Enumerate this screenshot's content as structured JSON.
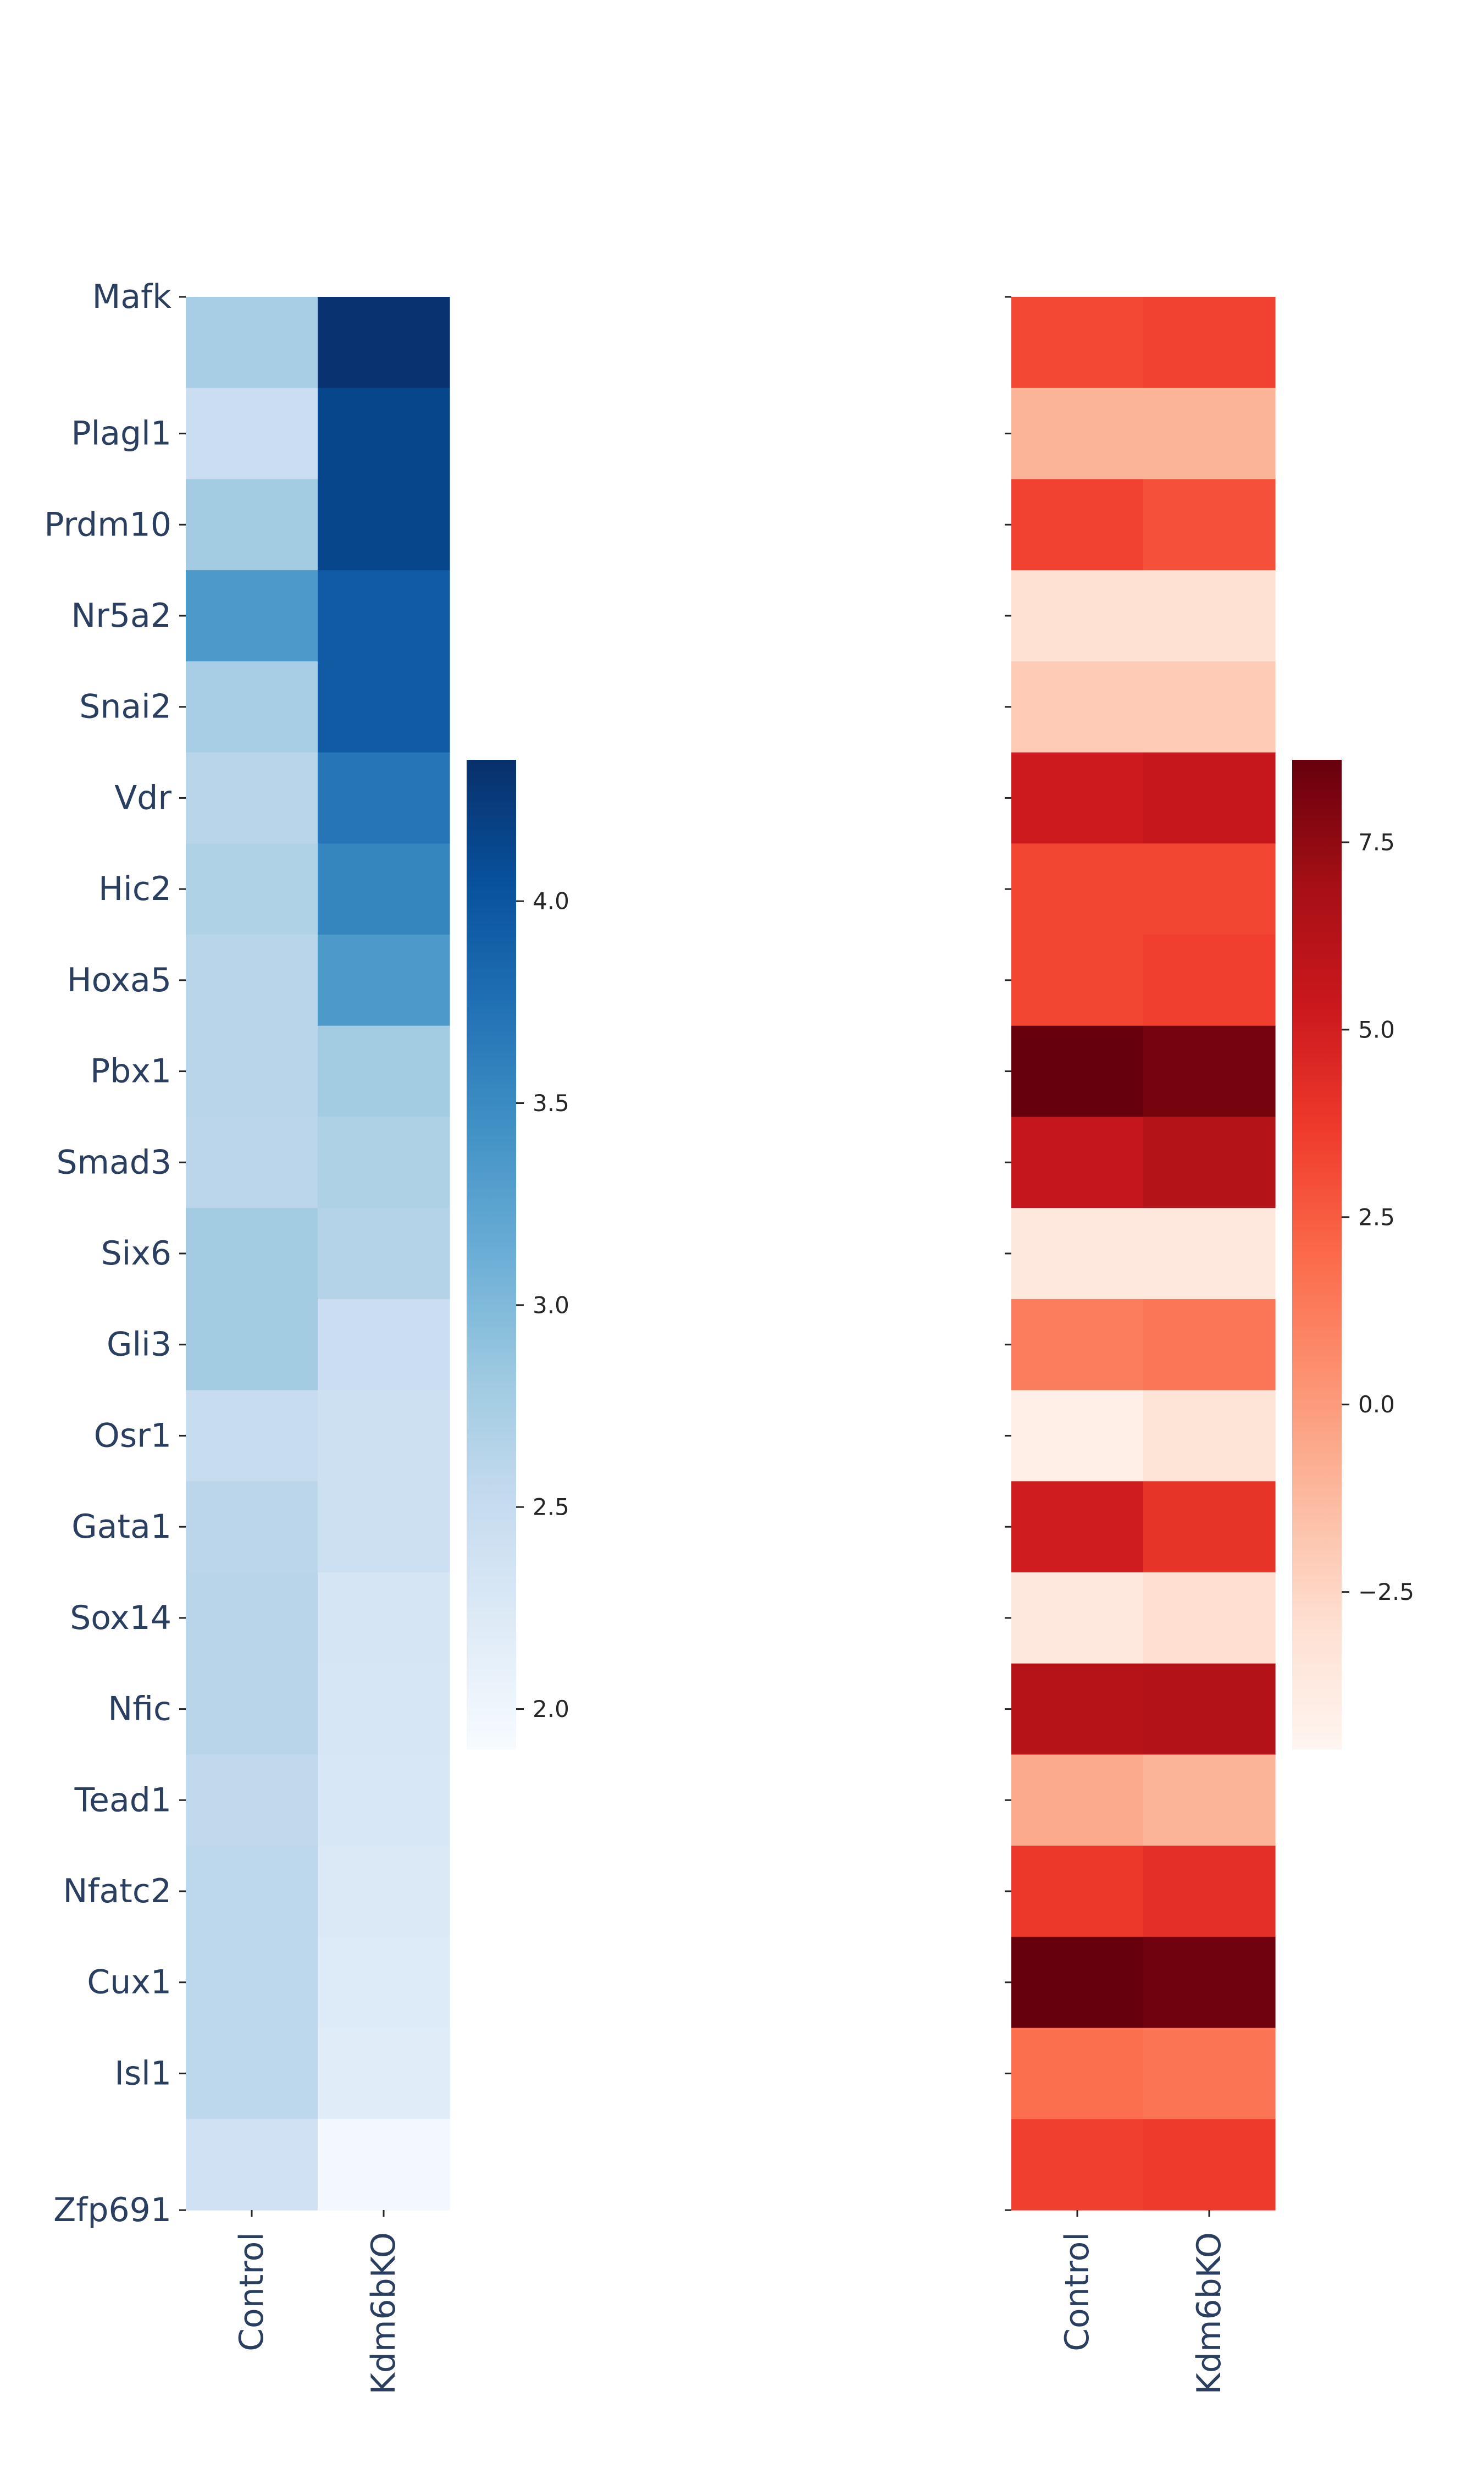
{
  "chart_data": [
    {
      "type": "heatmap",
      "colormap": "Blues",
      "rows": [
        "Mafk",
        "Plagl1",
        "Prdm10",
        "Nr5a2",
        "Snai2",
        "Vdr",
        "Hic2",
        "Hoxa5",
        "Pbx1",
        "Smad3",
        "Six6",
        "Gli3",
        "Osr1",
        "Gata1",
        "Sox14",
        "Nfic",
        "Tead1",
        "Nfatc2",
        "Cux1",
        "Isl1",
        "Zfp691"
      ],
      "columns": [
        "Control",
        "Kdm6bKO"
      ],
      "values": [
        [
          2.75,
          4.32
        ],
        [
          2.45,
          4.15
        ],
        [
          2.78,
          4.15
        ],
        [
          3.35,
          3.95
        ],
        [
          2.75,
          3.95
        ],
        [
          2.62,
          3.7
        ],
        [
          2.68,
          3.55
        ],
        [
          2.62,
          3.35
        ],
        [
          2.62,
          2.78
        ],
        [
          2.6,
          2.7
        ],
        [
          2.78,
          2.65
        ],
        [
          2.78,
          2.45
        ],
        [
          2.5,
          2.42
        ],
        [
          2.6,
          2.42
        ],
        [
          2.62,
          2.32
        ],
        [
          2.62,
          2.3
        ],
        [
          2.55,
          2.28
        ],
        [
          2.58,
          2.25
        ],
        [
          2.58,
          2.22
        ],
        [
          2.58,
          2.18
        ],
        [
          2.4,
          1.95
        ]
      ],
      "colorbar": {
        "vmin": 1.9,
        "vmax": 4.35,
        "ticks": [
          2.0,
          2.5,
          3.0,
          3.5,
          4.0
        ],
        "tick_labels": [
          "2.0",
          "2.5",
          "3.0",
          "3.5",
          "4.0"
        ]
      }
    },
    {
      "type": "heatmap",
      "colormap": "Reds",
      "rows_labeled": false,
      "row_count": 21,
      "columns": [
        "Control",
        "Kdm6bKO"
      ],
      "values": [
        [
          3.2,
          3.4
        ],
        [
          -1.0,
          -1.0
        ],
        [
          3.4,
          2.9
        ],
        [
          -3.0,
          -3.0
        ],
        [
          -2.0,
          -2.0
        ],
        [
          5.2,
          5.5
        ],
        [
          3.3,
          3.3
        ],
        [
          3.3,
          3.5
        ],
        [
          8.6,
          8.2
        ],
        [
          5.6,
          6.3
        ],
        [
          -3.6,
          -3.6
        ],
        [
          1.2,
          1.5
        ],
        [
          -4.1,
          -3.2
        ],
        [
          5.1,
          4.0
        ],
        [
          -3.5,
          -2.9
        ],
        [
          6.2,
          6.4
        ],
        [
          -0.6,
          -1.0
        ],
        [
          3.8,
          4.2
        ],
        [
          8.6,
          8.4
        ],
        [
          1.8,
          1.6
        ],
        [
          3.5,
          3.7
        ]
      ],
      "colorbar": {
        "vmin": -4.6,
        "vmax": 8.6,
        "ticks": [
          -2.5,
          0.0,
          2.5,
          5.0,
          7.5
        ],
        "tick_labels": [
          "−2.5",
          "0.0",
          "2.5",
          "5.0",
          "7.5"
        ]
      }
    }
  ]
}
